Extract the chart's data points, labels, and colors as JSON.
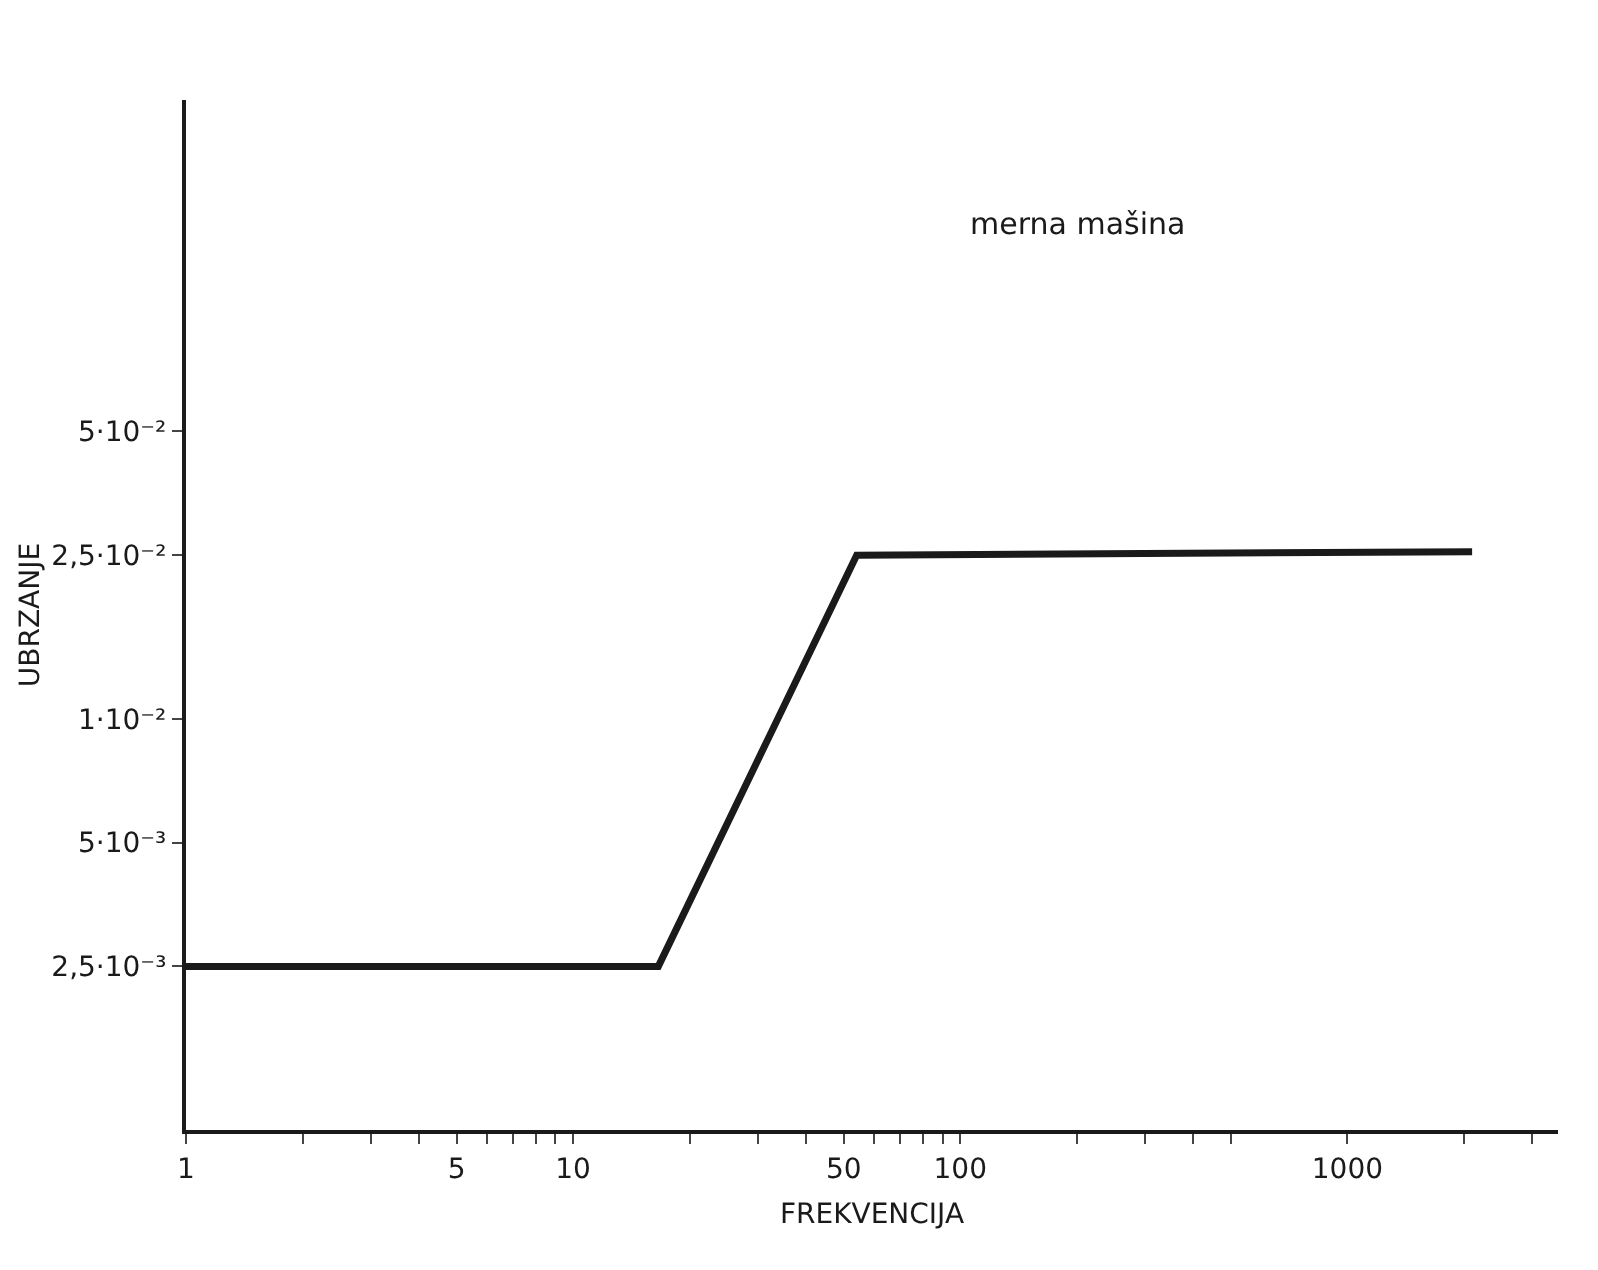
{
  "chart_data": {
    "type": "line",
    "xlabel": "FREKVENCIJA",
    "ylabel": "UBRZANJE",
    "annotations": [
      "merna mašina"
    ],
    "log": "xy",
    "grid": false,
    "marker": "none",
    "line_style": "solid",
    "x": [
      1,
      16.6,
      54,
      2100
    ],
    "series": [
      {
        "color": "#1a1a1a",
        "values": [
          0.0025,
          0.0025,
          0.025,
          0.0255
        ]
      }
    ],
    "xlim": [
      1,
      3500
    ],
    "ylim": [
      0.001,
      0.32
    ],
    "xticks": [
      1,
      {
        "value": 2,
        "label": null
      },
      {
        "value": 3,
        "label": null
      },
      {
        "value": 4,
        "label": null
      },
      5,
      {
        "value": 6,
        "label": null
      },
      {
        "value": 7,
        "label": null
      },
      {
        "value": 8,
        "label": null
      },
      {
        "value": 9,
        "label": null
      },
      10,
      {
        "value": 20,
        "label": null
      },
      {
        "value": 30,
        "label": null
      },
      {
        "value": 40,
        "label": null
      },
      50,
      {
        "value": 60,
        "label": null
      },
      {
        "value": 70,
        "label": null
      },
      {
        "value": 80,
        "label": null
      },
      {
        "value": 90,
        "label": null
      },
      100,
      {
        "value": 200,
        "label": null
      },
      {
        "value": 300,
        "label": null
      },
      {
        "value": 400,
        "label": null
      },
      {
        "value": 500,
        "label": null
      },
      1000,
      {
        "value": 2000,
        "label": null
      },
      {
        "value": 3000,
        "label": null
      }
    ],
    "yticks": [
      {
        "value": 0.0025,
        "label": "2,5·10⁻³"
      },
      {
        "value": 0.005,
        "label": "5·10⁻³"
      },
      {
        "value": 0.01,
        "label": "1·10⁻²"
      },
      {
        "value": 0.025,
        "label": "2,5·10⁻²"
      },
      {
        "value": 0.05,
        "label": "5·10⁻²"
      }
    ]
  }
}
